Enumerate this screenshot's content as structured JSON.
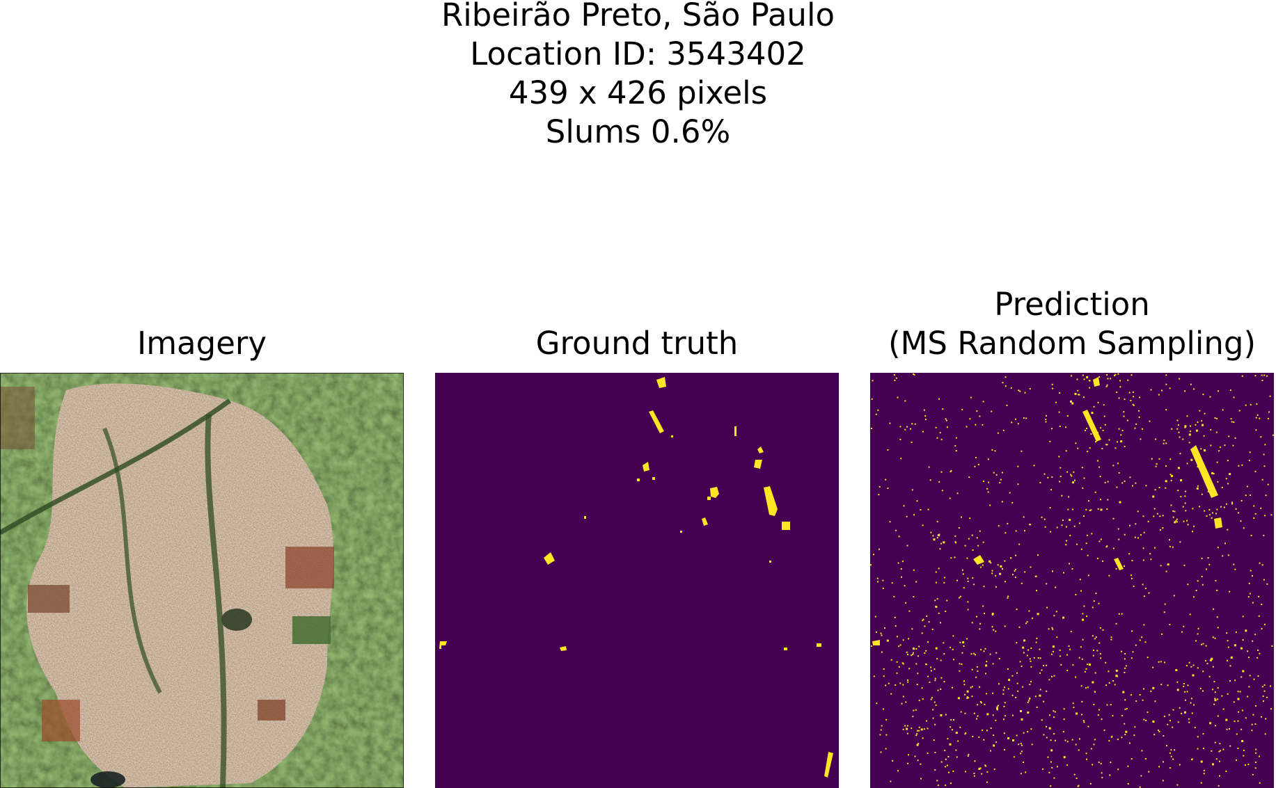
{
  "figure": {
    "title_lines": [
      "Ribeirão Preto, São Paulo",
      "Location ID: 3543402",
      "439 x 426 pixels",
      "Slums 0.6%"
    ]
  },
  "panels": [
    {
      "title_lines": [
        "Imagery"
      ]
    },
    {
      "title_lines": [
        "Ground truth"
      ]
    },
    {
      "title_lines": [
        "Prediction",
        "(MS Random Sampling)"
      ]
    }
  ],
  "colors": {
    "mask_background": "#440154",
    "mask_positive": "#fde725",
    "imagery_urban": "#a8825f",
    "imagery_vegetation": "#2e4a1f",
    "imagery_field": "#9a5a3a"
  },
  "icons": {
    "imagery": "satellite-image",
    "ground_truth": "binary-mask",
    "prediction": "binary-mask"
  }
}
